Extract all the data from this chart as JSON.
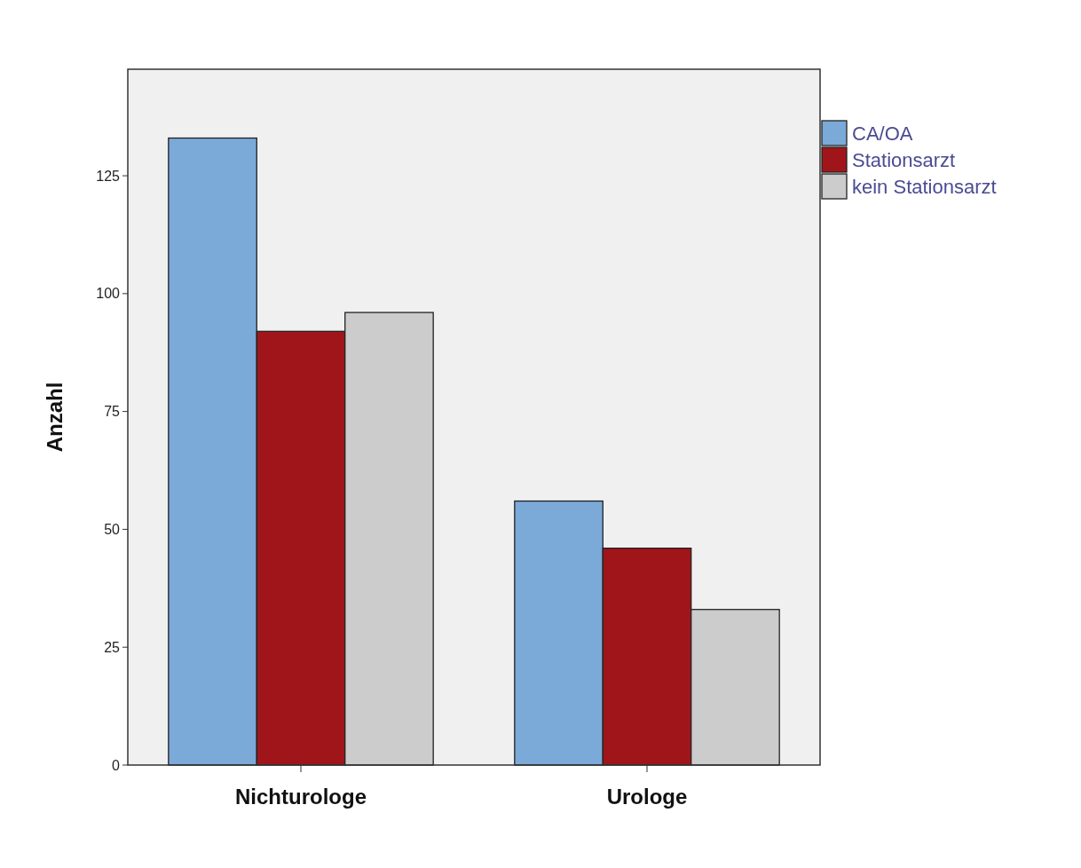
{
  "chart_data": {
    "type": "bar",
    "ylabel": "Anzahl",
    "categories": [
      "Nichturologe",
      "Urologe"
    ],
    "series": [
      {
        "name": "CA/OA",
        "color": "#7ba9d8",
        "values": [
          133,
          56
        ]
      },
      {
        "name": "Stationsarzt",
        "color": "#a01519",
        "values": [
          92,
          46
        ]
      },
      {
        "name": "kein Stationsarzt",
        "color": "#cccccc",
        "values": [
          96,
          33
        ]
      }
    ],
    "ylim": [
      0,
      147.6
    ],
    "yticks": [
      0,
      25,
      50,
      75,
      100,
      125
    ],
    "grid": false,
    "legend": "top right"
  }
}
